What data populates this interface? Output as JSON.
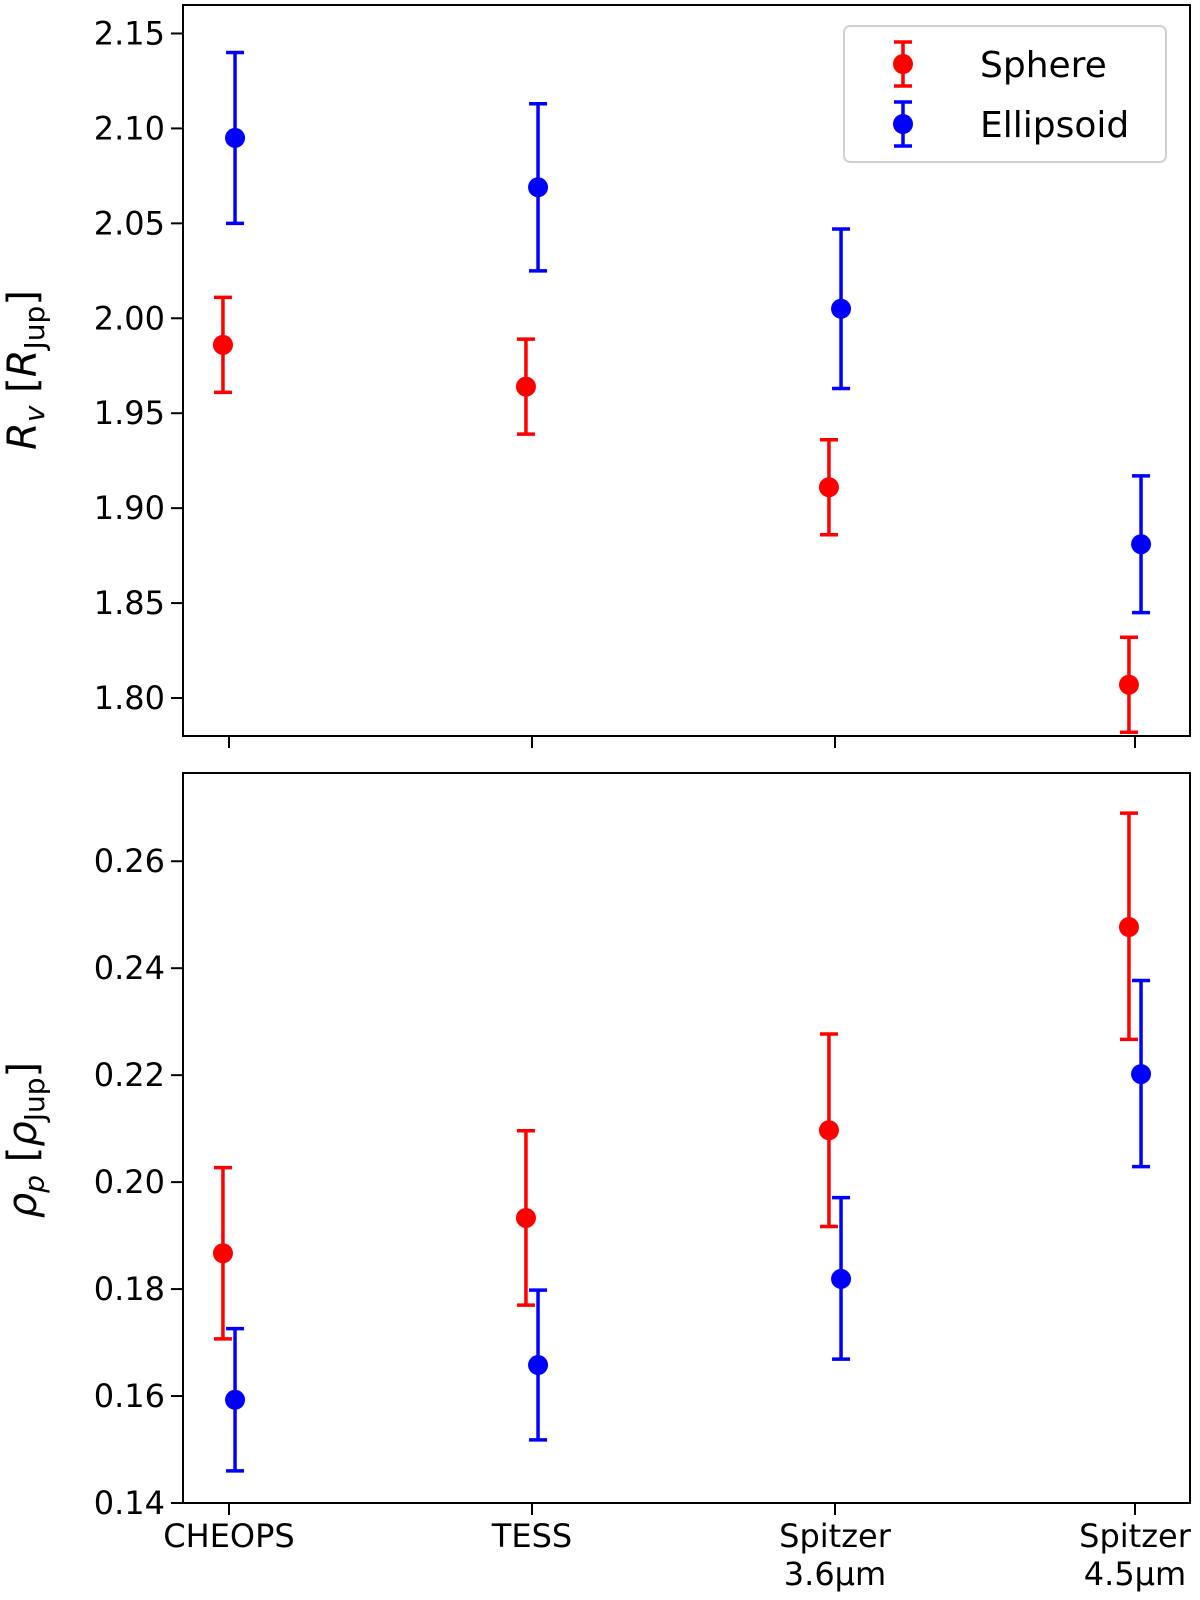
{
  "chart_data": {
    "type": "scatter",
    "categories": [
      "CHEOPS",
      "TESS",
      "Spitzer 3.6μm",
      "Spitzer 4.5μm"
    ],
    "category_lines": [
      [
        "CHEOPS"
      ],
      [
        "TESS"
      ],
      [
        "Spitzer",
        "3.6μm"
      ],
      [
        "Spitzer",
        "4.5μm"
      ]
    ],
    "legend": {
      "position": "top-right",
      "entries": [
        {
          "name": "Sphere",
          "color": "#ff0000"
        },
        {
          "name": "Ellipsoid",
          "color": "#0000ff"
        }
      ]
    },
    "panels": [
      {
        "ylabel": {
          "main": "R",
          "sub": "v",
          "unit_main": "R",
          "unit_sub": "Jup"
        },
        "ylim": [
          1.78,
          2.165
        ],
        "yticks": [
          1.8,
          1.85,
          1.9,
          1.95,
          2.0,
          2.05,
          2.1,
          2.15
        ],
        "ytick_labels": [
          "1.80",
          "1.85",
          "1.90",
          "1.95",
          "2.00",
          "2.05",
          "2.10",
          "2.15"
        ],
        "show_legend": true,
        "series": [
          {
            "name": "Sphere",
            "color": "#ff0000",
            "offset": -0.02,
            "values": [
              1.986,
              1.964,
              1.911,
              1.807
            ],
            "err_low": [
              0.025,
              0.025,
              0.025,
              0.025
            ],
            "err_high": [
              0.025,
              0.025,
              0.025,
              0.025
            ]
          },
          {
            "name": "Ellipsoid",
            "color": "#0000ff",
            "offset": 0.02,
            "values": [
              2.095,
              2.069,
              2.005,
              1.881
            ],
            "err_low": [
              0.045,
              0.044,
              0.042,
              0.036
            ],
            "err_high": [
              0.045,
              0.044,
              0.042,
              0.036
            ]
          }
        ]
      },
      {
        "ylabel": {
          "main": "ρ",
          "sub": "p",
          "unit_main": "ρ",
          "unit_sub": "Jup"
        },
        "ylim": [
          0.14,
          0.2765
        ],
        "yticks": [
          0.14,
          0.16,
          0.18,
          0.2,
          0.22,
          0.24,
          0.26
        ],
        "ytick_labels": [
          "0.14",
          "0.16",
          "0.18",
          "0.20",
          "0.22",
          "0.24",
          "0.26"
        ],
        "show_legend": false,
        "series": [
          {
            "name": "Sphere",
            "color": "#ff0000",
            "offset": -0.02,
            "values": [
              0.1867,
              0.1933,
              0.2097,
              0.2477
            ],
            "err_low": [
              0.016,
              0.0163,
              0.018,
              0.021
            ],
            "err_high": [
              0.016,
              0.0163,
              0.018,
              0.0213
            ]
          },
          {
            "name": "Ellipsoid",
            "color": "#0000ff",
            "offset": 0.02,
            "values": [
              0.1593,
              0.1658,
              0.1819,
              0.2202
            ],
            "err_low": [
              0.0133,
              0.014,
              0.015,
              0.0173
            ],
            "err_high": [
              0.0133,
              0.014,
              0.0152,
              0.0175
            ]
          }
        ]
      }
    ]
  }
}
